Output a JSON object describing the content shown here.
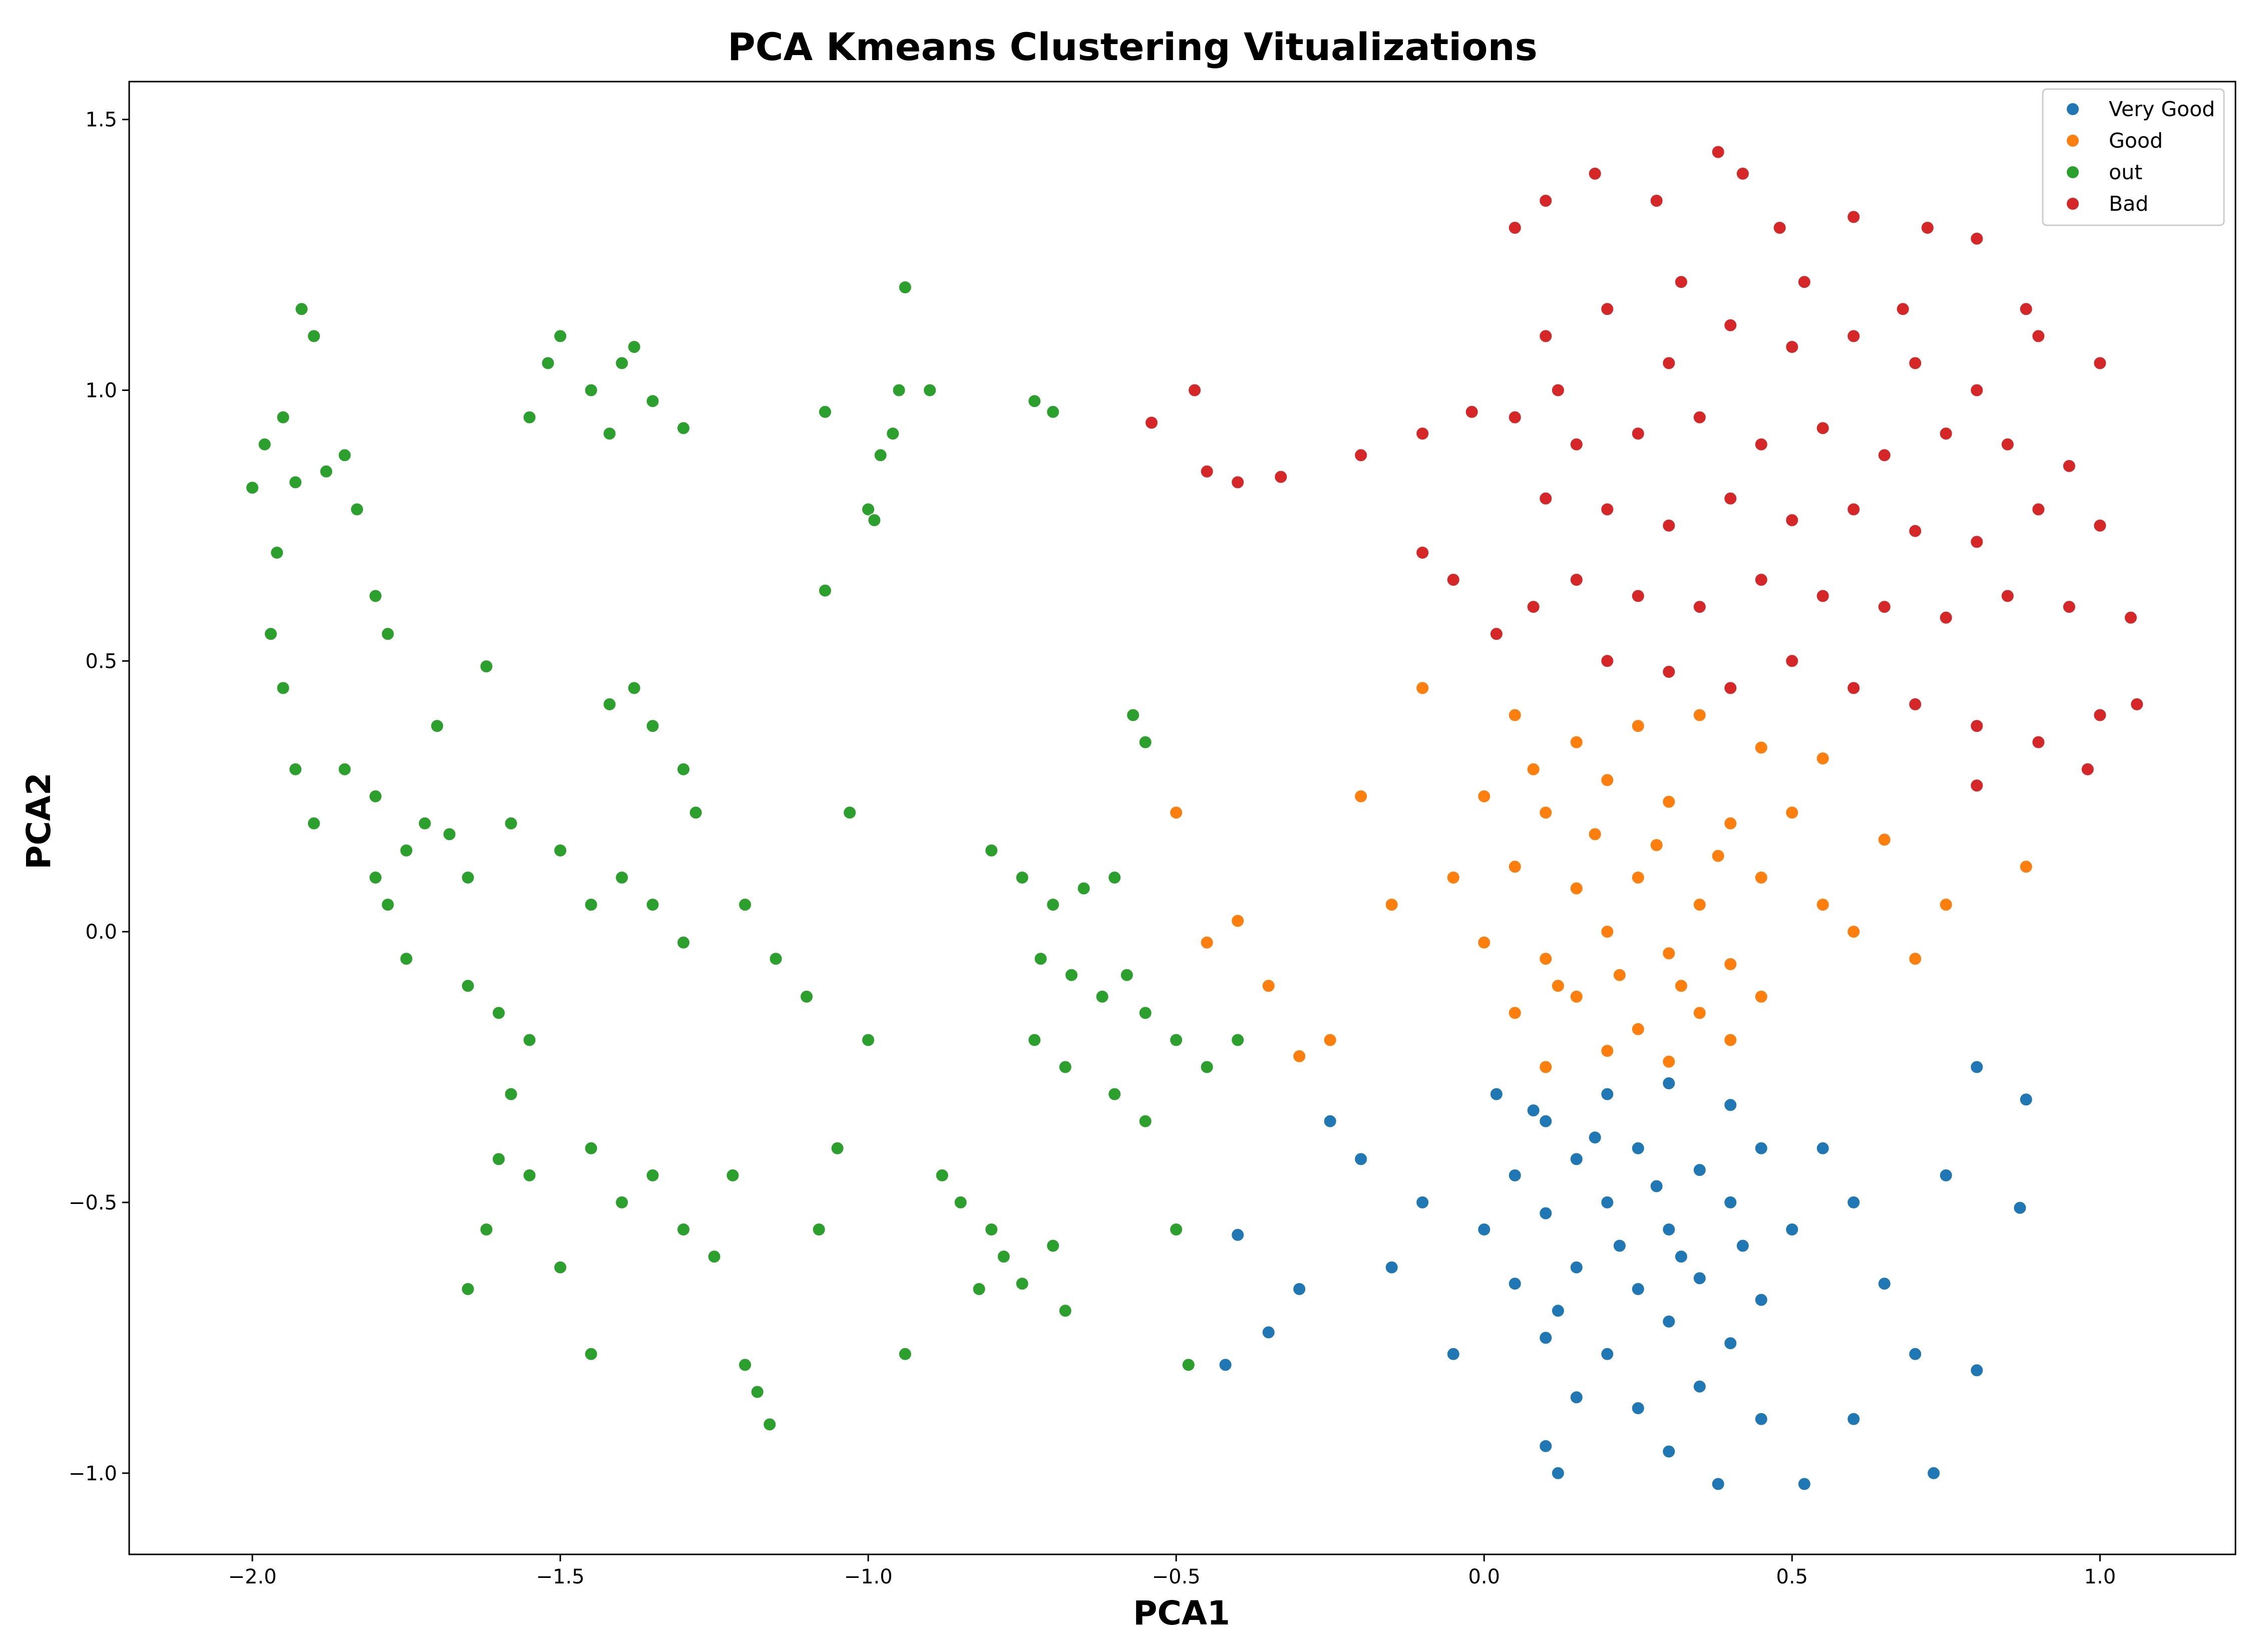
{
  "chart_data": {
    "type": "scatter",
    "title": "PCA Kmeans Clustering Vitualizations",
    "xlabel": "PCA1",
    "ylabel": "PCA2",
    "xlim": [
      -2.2,
      1.22
    ],
    "ylim": [
      -1.15,
      1.57
    ],
    "xticks": [
      -2.0,
      -1.5,
      -1.0,
      -0.5,
      0.0,
      0.5,
      1.0
    ],
    "xtick_labels": [
      "−2.0",
      "−1.5",
      "−1.0",
      "−0.5",
      "0.0",
      "0.5",
      "1.0"
    ],
    "yticks": [
      -1.0,
      -0.5,
      0.0,
      0.5,
      1.0,
      1.5
    ],
    "ytick_labels": [
      "−1.0",
      "−0.5",
      "0.0",
      "0.5",
      "1.0",
      "1.5"
    ],
    "grid": false,
    "legend_position": "top-right",
    "series": [
      {
        "name": "Very Good",
        "color": "#1f77b4",
        "points": [
          [
            0.02,
            -0.3
          ],
          [
            0.1,
            -0.35
          ],
          [
            0.2,
            -0.3
          ],
          [
            0.3,
            -0.28
          ],
          [
            0.4,
            -0.32
          ],
          [
            0.05,
            -0.45
          ],
          [
            0.15,
            -0.42
          ],
          [
            0.25,
            -0.4
          ],
          [
            0.35,
            -0.44
          ],
          [
            0.45,
            -0.4
          ],
          [
            0.0,
            -0.55
          ],
          [
            0.1,
            -0.52
          ],
          [
            0.2,
            -0.5
          ],
          [
            0.3,
            -0.55
          ],
          [
            0.4,
            -0.5
          ],
          [
            0.5,
            -0.55
          ],
          [
            0.05,
            -0.65
          ],
          [
            0.15,
            -0.62
          ],
          [
            0.25,
            -0.66
          ],
          [
            0.35,
            -0.64
          ],
          [
            0.45,
            -0.68
          ],
          [
            0.1,
            -0.75
          ],
          [
            0.2,
            -0.78
          ],
          [
            0.3,
            -0.72
          ],
          [
            0.4,
            -0.76
          ],
          [
            0.15,
            -0.86
          ],
          [
            0.25,
            -0.88
          ],
          [
            0.35,
            -0.84
          ],
          [
            0.45,
            -0.9
          ],
          [
            0.1,
            -0.95
          ],
          [
            0.3,
            -0.96
          ],
          [
            0.38,
            -1.02
          ],
          [
            0.12,
            -1.0
          ],
          [
            -0.1,
            -0.5
          ],
          [
            -0.15,
            -0.62
          ],
          [
            -0.2,
            -0.42
          ],
          [
            -0.05,
            -0.78
          ],
          [
            0.55,
            -0.4
          ],
          [
            0.6,
            -0.5
          ],
          [
            0.65,
            -0.65
          ],
          [
            0.7,
            -0.78
          ],
          [
            0.6,
            -0.9
          ],
          [
            0.75,
            -0.45
          ],
          [
            0.8,
            -0.25
          ],
          [
            0.88,
            -0.31
          ],
          [
            0.87,
            -0.51
          ],
          [
            0.8,
            -0.81
          ],
          [
            0.73,
            -1.0
          ],
          [
            0.52,
            -1.02
          ],
          [
            -0.3,
            -0.66
          ],
          [
            -0.35,
            -0.74
          ],
          [
            -0.4,
            -0.56
          ],
          [
            -0.42,
            -0.8
          ],
          [
            -0.25,
            -0.35
          ],
          [
            0.08,
            -0.33
          ],
          [
            0.18,
            -0.38
          ],
          [
            0.28,
            -0.47
          ],
          [
            0.22,
            -0.58
          ],
          [
            0.32,
            -0.6
          ],
          [
            0.42,
            -0.58
          ],
          [
            0.12,
            -0.7
          ]
        ]
      },
      {
        "name": "Good",
        "color": "#ff7f0e",
        "points": [
          [
            0.05,
            0.4
          ],
          [
            0.15,
            0.35
          ],
          [
            0.25,
            0.38
          ],
          [
            0.35,
            0.4
          ],
          [
            0.45,
            0.34
          ],
          [
            0.0,
            0.25
          ],
          [
            0.1,
            0.22
          ],
          [
            0.2,
            0.28
          ],
          [
            0.3,
            0.24
          ],
          [
            0.4,
            0.2
          ],
          [
            0.5,
            0.22
          ],
          [
            -0.05,
            0.1
          ],
          [
            0.05,
            0.12
          ],
          [
            0.15,
            0.08
          ],
          [
            0.25,
            0.1
          ],
          [
            0.35,
            0.05
          ],
          [
            0.45,
            0.1
          ],
          [
            0.55,
            0.05
          ],
          [
            0.0,
            -0.02
          ],
          [
            0.1,
            -0.05
          ],
          [
            0.2,
            0.0
          ],
          [
            0.3,
            -0.04
          ],
          [
            0.4,
            -0.06
          ],
          [
            0.05,
            -0.15
          ],
          [
            0.15,
            -0.12
          ],
          [
            0.25,
            -0.18
          ],
          [
            0.35,
            -0.15
          ],
          [
            0.45,
            -0.12
          ],
          [
            0.1,
            -0.25
          ],
          [
            0.2,
            -0.22
          ],
          [
            0.3,
            -0.24
          ],
          [
            0.4,
            -0.2
          ],
          [
            -0.1,
            0.45
          ],
          [
            -0.2,
            0.25
          ],
          [
            -0.25,
            -0.2
          ],
          [
            0.6,
            0.0
          ],
          [
            0.7,
            -0.05
          ],
          [
            0.75,
            0.05
          ],
          [
            0.88,
            0.12
          ],
          [
            0.65,
            0.17
          ],
          [
            -0.5,
            0.22
          ],
          [
            -0.4,
            0.02
          ],
          [
            -0.35,
            -0.1
          ],
          [
            -0.3,
            -0.23
          ],
          [
            -0.45,
            -0.02
          ],
          [
            -0.15,
            0.05
          ],
          [
            0.55,
            0.32
          ],
          [
            0.08,
            0.3
          ],
          [
            0.18,
            0.18
          ],
          [
            0.28,
            0.16
          ],
          [
            0.38,
            0.14
          ],
          [
            0.12,
            -0.1
          ],
          [
            0.22,
            -0.08
          ],
          [
            0.32,
            -0.1
          ]
        ]
      },
      {
        "name": "out",
        "color": "#2ca02c",
        "points": [
          [
            -2.0,
            0.82
          ],
          [
            -1.98,
            0.9
          ],
          [
            -1.95,
            0.95
          ],
          [
            -1.92,
            1.15
          ],
          [
            -1.9,
            1.1
          ],
          [
            -1.93,
            0.83
          ],
          [
            -1.96,
            0.7
          ],
          [
            -1.97,
            0.55
          ],
          [
            -1.95,
            0.45
          ],
          [
            -1.93,
            0.3
          ],
          [
            -1.9,
            0.2
          ],
          [
            -1.88,
            0.85
          ],
          [
            -1.85,
            0.88
          ],
          [
            -1.83,
            0.78
          ],
          [
            -1.8,
            0.62
          ],
          [
            -1.78,
            0.55
          ],
          [
            -1.85,
            0.3
          ],
          [
            -1.8,
            0.25
          ],
          [
            -1.75,
            0.15
          ],
          [
            -1.8,
            0.1
          ],
          [
            -1.78,
            0.05
          ],
          [
            -1.75,
            -0.05
          ],
          [
            -1.72,
            0.2
          ],
          [
            -1.68,
            0.18
          ],
          [
            -1.65,
            0.1
          ],
          [
            -1.7,
            0.38
          ],
          [
            -1.62,
            0.49
          ],
          [
            -1.65,
            -0.1
          ],
          [
            -1.6,
            -0.15
          ],
          [
            -1.55,
            -0.2
          ],
          [
            -1.58,
            -0.3
          ],
          [
            -1.6,
            -0.42
          ],
          [
            -1.62,
            -0.55
          ],
          [
            -1.65,
            -0.66
          ],
          [
            -1.55,
            -0.45
          ],
          [
            -1.5,
            -0.62
          ],
          [
            -1.45,
            -0.78
          ],
          [
            -1.45,
            -0.4
          ],
          [
            -1.4,
            -0.5
          ],
          [
            -1.35,
            -0.45
          ],
          [
            -1.3,
            -0.55
          ],
          [
            -1.25,
            -0.6
          ],
          [
            -1.22,
            -0.45
          ],
          [
            -1.2,
            -0.8
          ],
          [
            -1.18,
            -0.85
          ],
          [
            -1.16,
            -0.91
          ],
          [
            -1.58,
            0.2
          ],
          [
            -1.5,
            0.15
          ],
          [
            -1.45,
            0.05
          ],
          [
            -1.4,
            0.1
          ],
          [
            -1.35,
            0.05
          ],
          [
            -1.3,
            -0.02
          ],
          [
            -1.42,
            0.42
          ],
          [
            -1.38,
            0.45
          ],
          [
            -1.35,
            0.38
          ],
          [
            -1.3,
            0.3
          ],
          [
            -1.28,
            0.22
          ],
          [
            -1.55,
            0.95
          ],
          [
            -1.52,
            1.05
          ],
          [
            -1.5,
            1.1
          ],
          [
            -1.45,
            1.0
          ],
          [
            -1.42,
            0.92
          ],
          [
            -1.4,
            1.05
          ],
          [
            -1.38,
            1.08
          ],
          [
            -1.35,
            0.98
          ],
          [
            -1.3,
            0.93
          ],
          [
            -1.07,
            0.96
          ],
          [
            -0.98,
            0.88
          ],
          [
            -0.96,
            0.92
          ],
          [
            -0.95,
            1.0
          ],
          [
            -0.94,
            1.19
          ],
          [
            -0.9,
            1.0
          ],
          [
            -1.07,
            0.63
          ],
          [
            -1.03,
            0.22
          ],
          [
            -1.0,
            0.78
          ],
          [
            -0.99,
            0.76
          ],
          [
            -0.73,
            0.98
          ],
          [
            -0.7,
            0.96
          ],
          [
            -0.8,
            0.15
          ],
          [
            -0.75,
            0.1
          ],
          [
            -0.7,
            0.05
          ],
          [
            -0.65,
            0.08
          ],
          [
            -0.6,
            0.1
          ],
          [
            -0.72,
            -0.05
          ],
          [
            -0.67,
            -0.08
          ],
          [
            -0.62,
            -0.12
          ],
          [
            -0.58,
            -0.08
          ],
          [
            -0.55,
            -0.15
          ],
          [
            -0.73,
            -0.2
          ],
          [
            -0.68,
            -0.25
          ],
          [
            -0.6,
            -0.3
          ],
          [
            -0.55,
            -0.35
          ],
          [
            -0.8,
            -0.55
          ],
          [
            -0.78,
            -0.6
          ],
          [
            -0.75,
            -0.65
          ],
          [
            -0.7,
            -0.58
          ],
          [
            -0.68,
            -0.7
          ],
          [
            -0.82,
            -0.66
          ],
          [
            -0.94,
            -0.78
          ],
          [
            -0.88,
            -0.45
          ],
          [
            -0.85,
            -0.5
          ],
          [
            -0.57,
            0.4
          ],
          [
            -0.55,
            0.35
          ],
          [
            -0.5,
            -0.2
          ],
          [
            -0.45,
            -0.25
          ],
          [
            -0.4,
            -0.2
          ],
          [
            -0.48,
            -0.8
          ],
          [
            -0.5,
            -0.55
          ],
          [
            -1.0,
            -0.2
          ],
          [
            -1.05,
            -0.4
          ],
          [
            -1.08,
            -0.55
          ],
          [
            -1.1,
            -0.12
          ],
          [
            -1.15,
            -0.05
          ],
          [
            -1.2,
            0.05
          ]
        ]
      },
      {
        "name": "Bad",
        "color": "#d62728",
        "points": [
          [
            0.05,
            1.3
          ],
          [
            0.1,
            1.35
          ],
          [
            0.18,
            1.4
          ],
          [
            0.28,
            1.35
          ],
          [
            0.38,
            1.44
          ],
          [
            0.42,
            1.4
          ],
          [
            0.48,
            1.3
          ],
          [
            0.6,
            1.32
          ],
          [
            0.72,
            1.3
          ],
          [
            0.8,
            1.28
          ],
          [
            0.1,
            1.1
          ],
          [
            0.2,
            1.15
          ],
          [
            0.3,
            1.05
          ],
          [
            0.4,
            1.12
          ],
          [
            0.5,
            1.08
          ],
          [
            0.6,
            1.1
          ],
          [
            0.7,
            1.05
          ],
          [
            0.8,
            1.0
          ],
          [
            0.9,
            1.1
          ],
          [
            1.0,
            1.05
          ],
          [
            0.05,
            0.95
          ],
          [
            0.15,
            0.9
          ],
          [
            0.25,
            0.92
          ],
          [
            0.35,
            0.95
          ],
          [
            0.45,
            0.9
          ],
          [
            0.55,
            0.93
          ],
          [
            0.65,
            0.88
          ],
          [
            0.75,
            0.92
          ],
          [
            0.85,
            0.9
          ],
          [
            0.95,
            0.86
          ],
          [
            0.1,
            0.8
          ],
          [
            0.2,
            0.78
          ],
          [
            0.3,
            0.75
          ],
          [
            0.4,
            0.8
          ],
          [
            0.5,
            0.76
          ],
          [
            0.6,
            0.78
          ],
          [
            0.7,
            0.74
          ],
          [
            0.8,
            0.72
          ],
          [
            0.9,
            0.78
          ],
          [
            1.0,
            0.75
          ],
          [
            0.15,
            0.65
          ],
          [
            0.25,
            0.62
          ],
          [
            0.35,
            0.6
          ],
          [
            0.45,
            0.65
          ],
          [
            0.55,
            0.62
          ],
          [
            0.65,
            0.6
          ],
          [
            0.75,
            0.58
          ],
          [
            0.85,
            0.62
          ],
          [
            0.95,
            0.6
          ],
          [
            1.05,
            0.58
          ],
          [
            0.2,
            0.5
          ],
          [
            0.3,
            0.48
          ],
          [
            0.4,
            0.45
          ],
          [
            0.5,
            0.5
          ],
          [
            0.6,
            0.45
          ],
          [
            0.7,
            0.42
          ],
          [
            0.8,
            0.38
          ],
          [
            0.9,
            0.35
          ],
          [
            1.0,
            0.4
          ],
          [
            1.06,
            0.42
          ],
          [
            -0.1,
            0.7
          ],
          [
            -0.05,
            0.65
          ],
          [
            -0.02,
            0.96
          ],
          [
            -0.1,
            0.92
          ],
          [
            -0.2,
            0.88
          ],
          [
            -0.4,
            0.83
          ],
          [
            -0.33,
            0.84
          ],
          [
            -0.45,
            0.85
          ],
          [
            -0.47,
            1.0
          ],
          [
            -0.54,
            0.94
          ],
          [
            0.8,
            0.27
          ],
          [
            0.98,
            0.3
          ],
          [
            0.02,
            0.55
          ],
          [
            0.08,
            0.6
          ],
          [
            0.12,
            1.0
          ],
          [
            0.32,
            1.2
          ],
          [
            0.52,
            1.2
          ],
          [
            0.68,
            1.15
          ],
          [
            0.88,
            1.15
          ]
        ]
      }
    ]
  }
}
